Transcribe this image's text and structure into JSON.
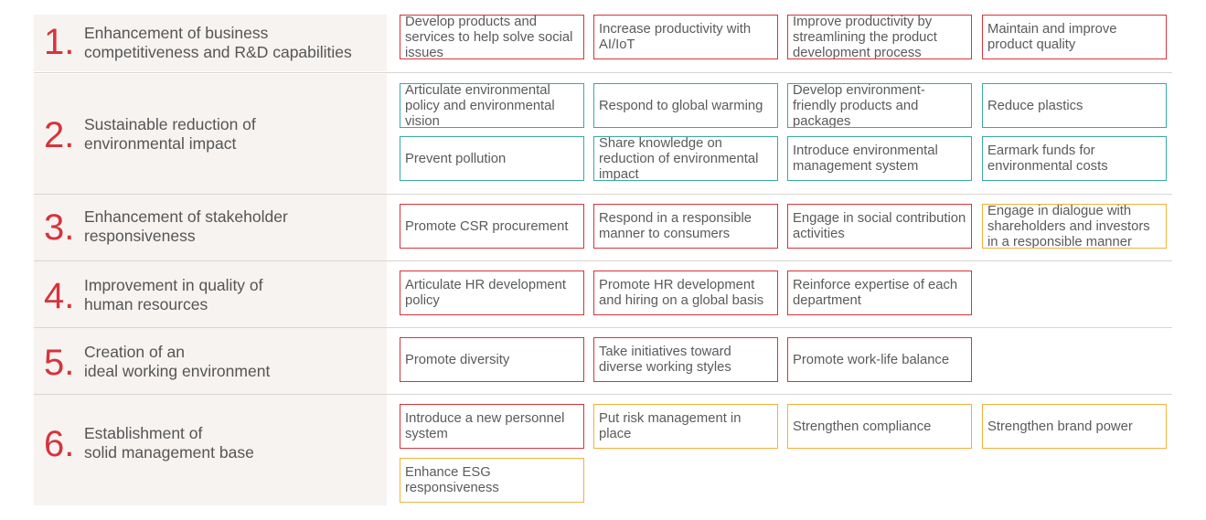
{
  "colors": {
    "red": "#d6343b",
    "teal": "#3aa9a2",
    "yellow": "#f0b23c",
    "panel": "#f6f3f1",
    "text": "#555555"
  },
  "rows": [
    {
      "number": "1.",
      "title": "Enhancement of business\ncompetitiveness and R&D capabilities",
      "items": [
        {
          "text": "Develop products and services to help solve social issues",
          "color": "red"
        },
        {
          "text": "Increase productivity with AI/IoT",
          "color": "red"
        },
        {
          "text": "Improve productivity by streamlining the product development process",
          "color": "red"
        },
        {
          "text": "Maintain and improve product quality",
          "color": "red"
        }
      ]
    },
    {
      "number": "2.",
      "title": "Sustainable reduction of\nenvironmental impact",
      "items": [
        {
          "text": "Articulate environmental policy and environmental vision",
          "color": "teal"
        },
        {
          "text": "Respond to global warming",
          "color": "teal"
        },
        {
          "text": "Develop environment-friendly products and packages",
          "color": "teal"
        },
        {
          "text": "Reduce plastics",
          "color": "teal"
        },
        {
          "text": "Prevent pollution",
          "color": "teal"
        },
        {
          "text": "Share knowledge on reduction of environmental impact",
          "color": "teal"
        },
        {
          "text": "Introduce environmental management system",
          "color": "teal"
        },
        {
          "text": "Earmark funds for environmental costs",
          "color": "teal"
        }
      ]
    },
    {
      "number": "3.",
      "title": "Enhancement of stakeholder\nresponsiveness",
      "items": [
        {
          "text": "Promote CSR procurement",
          "color": "red"
        },
        {
          "text": "Respond in a responsible manner to consumers",
          "color": "red"
        },
        {
          "text": "Engage in social contribution activities",
          "color": "red"
        },
        {
          "text": "Engage in dialogue with shareholders and investors in a responsible manner",
          "color": "yellow"
        }
      ]
    },
    {
      "number": "4.",
      "title": "Improvement in quality of\nhuman resources",
      "items": [
        {
          "text": "Articulate HR development policy",
          "color": "red"
        },
        {
          "text": "Promote HR development and hiring on a global basis",
          "color": "red"
        },
        {
          "text": "Reinforce expertise of each department",
          "color": "red"
        }
      ]
    },
    {
      "number": "5.",
      "title": "Creation of an\nideal working environment",
      "items": [
        {
          "text": "Promote diversity",
          "color": "red"
        },
        {
          "text": "Take initiatives toward diverse working styles",
          "color": "red"
        },
        {
          "text": "Promote work-life balance",
          "color": "red"
        }
      ]
    },
    {
      "number": "6.",
      "title": "Establishment of\nsolid management base",
      "items": [
        {
          "text": "Introduce a new personnel system",
          "color": "red"
        },
        {
          "text": "Put risk management in place",
          "color": "yellow"
        },
        {
          "text": "Strengthen compliance",
          "color": "yellow"
        },
        {
          "text": "Strengthen brand power",
          "color": "yellow"
        },
        {
          "text": "Enhance ESG responsiveness",
          "color": "yellow"
        }
      ]
    }
  ]
}
